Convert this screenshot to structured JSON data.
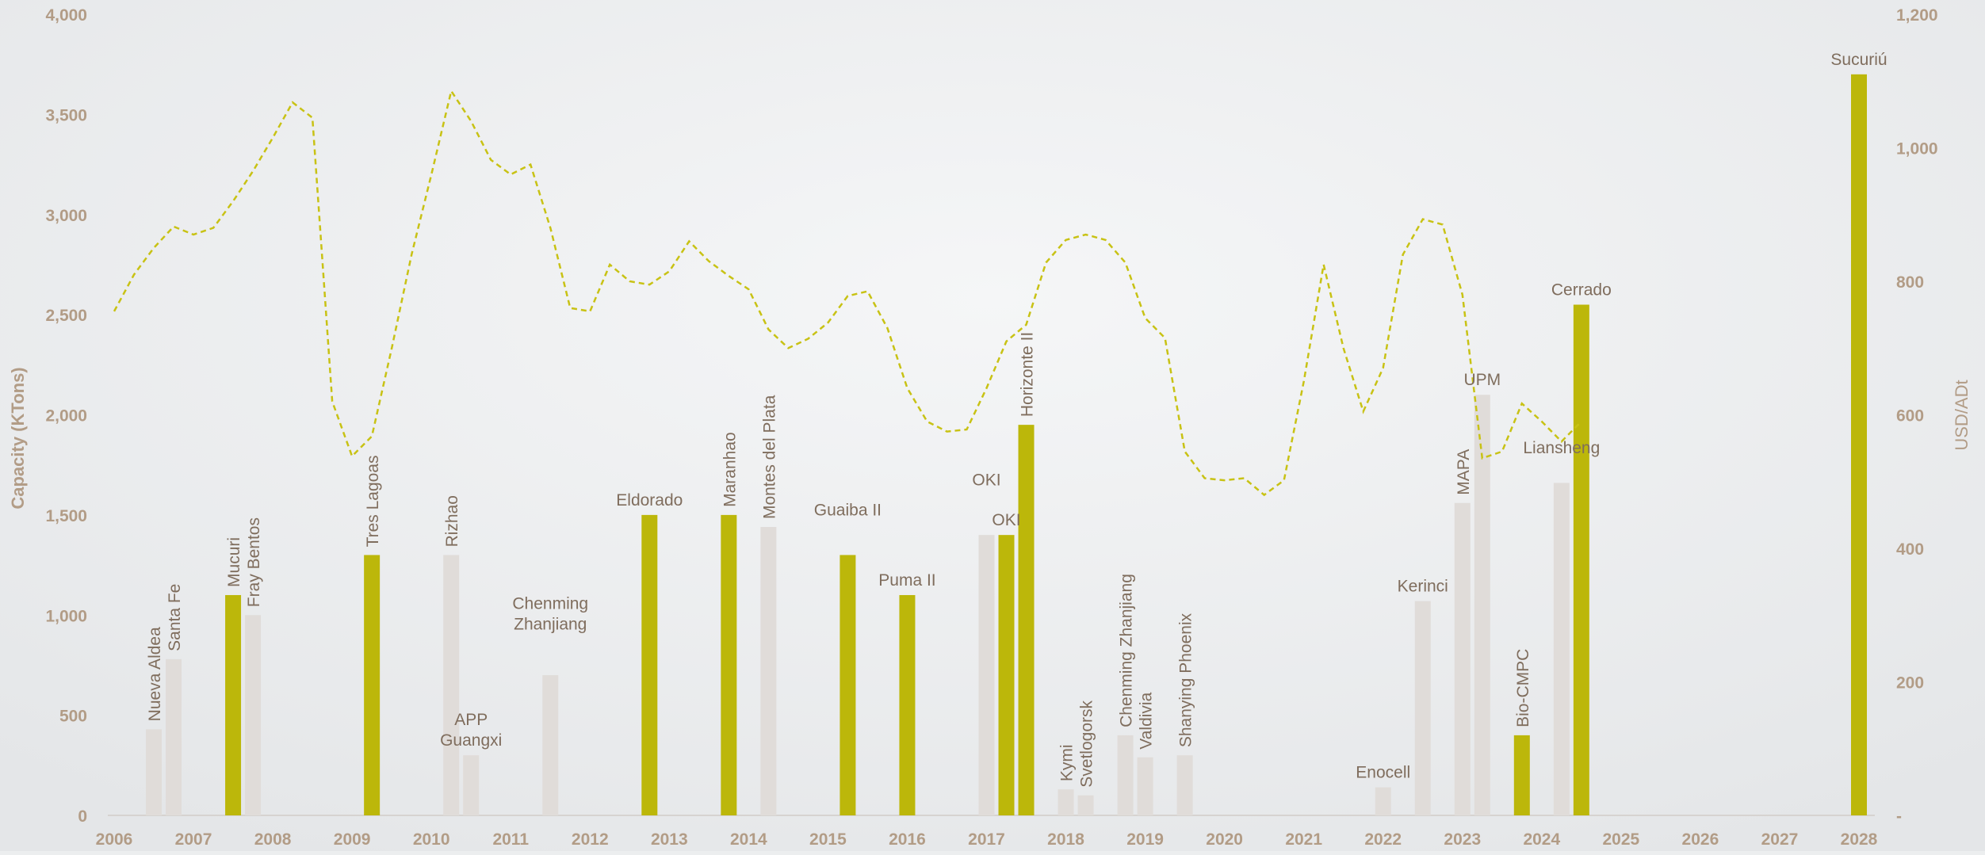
{
  "chart_data": {
    "type": "bar",
    "ylabel": "Capacity  (KTons)",
    "y2label": "USD/ADt",
    "ylim": [
      0,
      4000
    ],
    "yticks": [
      "0",
      "500",
      "1,000",
      "1,500",
      "2,000",
      "2,500",
      "3,000",
      "3,500",
      "4,000"
    ],
    "y2lim": [
      0,
      1200
    ],
    "y2ticks": [
      "-",
      "200",
      "400",
      "600",
      "800",
      "1,000",
      "1,200"
    ],
    "xlim": [
      2006,
      2028
    ],
    "xticks": [
      "2006",
      "2007",
      "2008",
      "2009",
      "2010",
      "2011",
      "2012",
      "2013",
      "2014",
      "2015",
      "2016",
      "2017",
      "2018",
      "2019",
      "2020",
      "2021",
      "2022",
      "2023",
      "2024",
      "2025",
      "2026",
      "2027",
      "2028"
    ],
    "colors": {
      "highlight": "#bcb70a",
      "other": "#e0dcd9",
      "line": "#c8c214"
    },
    "bars": [
      {
        "label": "Nueva Aldea",
        "x": 2006.5,
        "value": 430,
        "highlight": false,
        "rotated": true
      },
      {
        "label": "Santa Fe",
        "x": 2006.75,
        "value": 780,
        "highlight": false,
        "rotated": true
      },
      {
        "label": "Mucuri",
        "x": 2007.5,
        "value": 1100,
        "highlight": true,
        "rotated": true
      },
      {
        "label": "Fray Bentos",
        "x": 2007.75,
        "value": 1000,
        "highlight": false,
        "rotated": true
      },
      {
        "label": "Tres Lagoas",
        "x": 2009.25,
        "value": 1300,
        "highlight": true,
        "rotated": true
      },
      {
        "label": "Rizhao",
        "x": 2010.25,
        "value": 1300,
        "highlight": false,
        "rotated": true
      },
      {
        "label": "APP Guangxi",
        "lines": [
          "APP",
          "Guangxi"
        ],
        "x": 2010.5,
        "value": 300,
        "highlight": false,
        "rotated": false
      },
      {
        "label": "Chenming Zhanjiang",
        "lines": [
          "Chenming",
          "Zhanjiang"
        ],
        "x": 2011.5,
        "value": 700,
        "highlight": false,
        "rotated": false,
        "label_value": 880
      },
      {
        "label": "Eldorado",
        "x": 2012.75,
        "value": 1500,
        "highlight": true,
        "rotated": false
      },
      {
        "label": "Maranhao",
        "x": 2013.75,
        "value": 1500,
        "highlight": true,
        "rotated": true
      },
      {
        "label": "Montes del Plata",
        "x": 2014.25,
        "value": 1440,
        "highlight": false,
        "rotated": true
      },
      {
        "label": "Guaiba II",
        "x": 2015.25,
        "value": 1300,
        "highlight": true,
        "rotated": false,
        "label_value": 1450
      },
      {
        "label": "Puma II",
        "x": 2016,
        "value": 1100,
        "highlight": true,
        "rotated": false
      },
      {
        "label": "OKI",
        "x": 2017,
        "value": 1400,
        "highlight": false,
        "rotated": false,
        "label_value": 1600
      },
      {
        "label": "OKI",
        "x": 2017.25,
        "value": 1400,
        "highlight": true,
        "rotated": false
      },
      {
        "label": "Horizonte II",
        "x": 2017.5,
        "value": 1950,
        "highlight": true,
        "rotated": true
      },
      {
        "label": "Kymi",
        "x": 2018,
        "value": 130,
        "highlight": false,
        "rotated": true
      },
      {
        "label": "Svetlogorsk",
        "x": 2018.25,
        "value": 100,
        "highlight": false,
        "rotated": true
      },
      {
        "label": "Chenming Zhanjiang",
        "x": 2018.75,
        "value": 400,
        "highlight": false,
        "rotated": true
      },
      {
        "label": "Valdivia",
        "x": 2019,
        "value": 290,
        "highlight": false,
        "rotated": true
      },
      {
        "label": "Shanying Phoenix",
        "x": 2019.5,
        "value": 300,
        "highlight": false,
        "rotated": true
      },
      {
        "label": "Enocell",
        "x": 2022,
        "value": 140,
        "highlight": false,
        "rotated": false
      },
      {
        "label": "Kerinci",
        "x": 2022.5,
        "value": 1070,
        "highlight": false,
        "rotated": false
      },
      {
        "label": "MAPA",
        "x": 2023,
        "value": 1560,
        "highlight": false,
        "rotated": true
      },
      {
        "label": "UPM",
        "x": 2023.25,
        "value": 2100,
        "highlight": false,
        "rotated": false
      },
      {
        "label": "Bio-CMPC",
        "x": 2023.75,
        "value": 400,
        "highlight": true,
        "rotated": true
      },
      {
        "label": "Liansheng",
        "x": 2024.25,
        "value": 1660,
        "highlight": false,
        "rotated": false,
        "label_value": 1760
      },
      {
        "label": "Cerrado",
        "x": 2024.5,
        "value": 2550,
        "highlight": true,
        "rotated": false
      },
      {
        "label": "Sucuriú",
        "x": 2028,
        "value": 3700,
        "highlight": true,
        "rotated": false
      }
    ],
    "price_line": {
      "axis": "right",
      "points": [
        [
          2006.0,
          755
        ],
        [
          2006.25,
          810
        ],
        [
          2006.5,
          850
        ],
        [
          2006.75,
          882
        ],
        [
          2007.0,
          870
        ],
        [
          2007.25,
          880
        ],
        [
          2007.5,
          920
        ],
        [
          2007.75,
          965
        ],
        [
          2008.0,
          1015
        ],
        [
          2008.25,
          1068
        ],
        [
          2008.5,
          1045
        ],
        [
          2008.75,
          620
        ],
        [
          2009.0,
          538
        ],
        [
          2009.25,
          568
        ],
        [
          2009.5,
          700
        ],
        [
          2009.75,
          840
        ],
        [
          2010.0,
          960
        ],
        [
          2010.25,
          1085
        ],
        [
          2010.5,
          1040
        ],
        [
          2010.75,
          982
        ],
        [
          2011.0,
          960
        ],
        [
          2011.25,
          975
        ],
        [
          2011.5,
          880
        ],
        [
          2011.75,
          760
        ],
        [
          2012.0,
          755
        ],
        [
          2012.25,
          825
        ],
        [
          2012.5,
          800
        ],
        [
          2012.75,
          795
        ],
        [
          2013.0,
          815
        ],
        [
          2013.25,
          860
        ],
        [
          2013.5,
          830
        ],
        [
          2013.75,
          808
        ],
        [
          2014.0,
          788
        ],
        [
          2014.25,
          728
        ],
        [
          2014.5,
          700
        ],
        [
          2014.75,
          714
        ],
        [
          2015.0,
          738
        ],
        [
          2015.25,
          778
        ],
        [
          2015.5,
          785
        ],
        [
          2015.75,
          730
        ],
        [
          2016.0,
          640
        ],
        [
          2016.25,
          590
        ],
        [
          2016.5,
          575
        ],
        [
          2016.75,
          578
        ],
        [
          2017.0,
          640
        ],
        [
          2017.25,
          710
        ],
        [
          2017.5,
          735
        ],
        [
          2017.75,
          828
        ],
        [
          2018.0,
          862
        ],
        [
          2018.25,
          870
        ],
        [
          2018.5,
          862
        ],
        [
          2018.75,
          828
        ],
        [
          2019.0,
          745
        ],
        [
          2019.25,
          715
        ],
        [
          2019.5,
          545
        ],
        [
          2019.75,
          505
        ],
        [
          2020.0,
          502
        ],
        [
          2020.25,
          505
        ],
        [
          2020.5,
          480
        ],
        [
          2020.75,
          502
        ],
        [
          2021.0,
          650
        ],
        [
          2021.25,
          825
        ],
        [
          2021.5,
          700
        ],
        [
          2021.75,
          605
        ],
        [
          2022.0,
          670
        ],
        [
          2022.25,
          840
        ],
        [
          2022.5,
          893
        ],
        [
          2022.75,
          885
        ],
        [
          2023.0,
          780
        ],
        [
          2023.25,
          535
        ],
        [
          2023.5,
          545
        ],
        [
          2023.75,
          617
        ],
        [
          2024.0,
          590
        ],
        [
          2024.25,
          560
        ],
        [
          2024.5,
          590
        ]
      ]
    }
  }
}
